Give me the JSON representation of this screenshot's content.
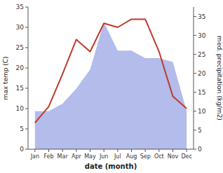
{
  "chart_data": {
    "type": "line",
    "categories": [
      "Jan",
      "Feb",
      "Mar",
      "Apr",
      "May",
      "Jun",
      "Jul",
      "Aug",
      "Sep",
      "Oct",
      "Nov",
      "Dec"
    ],
    "xlabel": "date (month)",
    "ylabel": "max temp (C)",
    "y2label": "med. precipitation (kg/m2)",
    "ylim": [
      0,
      35
    ],
    "yticks": [
      0,
      5,
      10,
      15,
      20,
      25,
      30,
      35
    ],
    "y2lim": [
      0,
      37.5
    ],
    "y2ticks": [
      0,
      5,
      10,
      15,
      20,
      25,
      30,
      35
    ],
    "grid": false,
    "series": [
      {
        "type": "area",
        "axis": "y2",
        "color": "#b3bceb",
        "values": [
          10.0,
          10.0,
          12.0,
          16.0,
          21.0,
          33.5,
          26.0,
          26.0,
          24.0,
          24.0,
          23.0,
          10.0
        ]
      },
      {
        "type": "line",
        "color": "#c0392b",
        "values": [
          6.5,
          10.5,
          18.5,
          27.0,
          24.0,
          31.0,
          30.0,
          32.0,
          32.0,
          24.0,
          13.0,
          10.0
        ]
      }
    ]
  }
}
